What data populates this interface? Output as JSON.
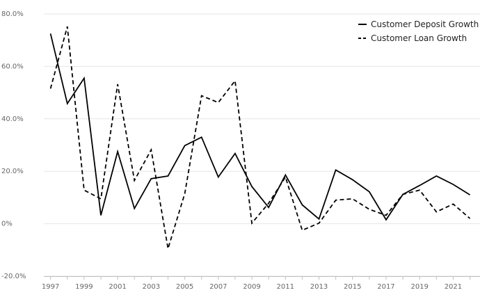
{
  "chart_data": {
    "type": "line",
    "title": "",
    "xlabel": "",
    "ylabel": "",
    "x": [
      1997,
      1998,
      1999,
      2000,
      2001,
      2002,
      2003,
      2004,
      2005,
      2006,
      2007,
      2008,
      2009,
      2010,
      2011,
      2012,
      2013,
      2014,
      2015,
      2016,
      2017,
      2018,
      2019,
      2020,
      2021,
      2022
    ],
    "xlim": [
      1996.6,
      2022.6
    ],
    "ylim": [
      -20,
      80
    ],
    "y_ticks": [
      -20,
      0,
      20,
      40,
      60,
      80
    ],
    "y_tick_labels": [
      "-20.0%",
      "0%",
      "20.0%",
      "40.0%",
      "60.0%",
      "80.0%"
    ],
    "x_ticks": [
      1997,
      1999,
      2001,
      2003,
      2005,
      2007,
      2009,
      2011,
      2013,
      2015,
      2017,
      2019,
      2021
    ],
    "x_tick_labels": [
      "1997",
      "1999",
      "2001",
      "2003",
      "2005",
      "2007",
      "2009",
      "2011",
      "2013",
      "2015",
      "2017",
      "2019",
      "2021"
    ],
    "grid": "horizontal",
    "legend_position": "top-right",
    "series": [
      {
        "name": "Customer Deposit Growth",
        "style": "solid",
        "color": "#000000",
        "values": [
          72.5,
          45.8,
          55.5,
          3.2,
          27.5,
          5.8,
          17.2,
          18.2,
          29.8,
          33.0,
          17.8,
          26.8,
          14.2,
          6.2,
          18.6,
          7.2,
          1.8,
          20.5,
          16.8,
          12.2,
          1.5,
          11.2,
          14.6,
          18.2,
          15.0,
          11.0
        ]
      },
      {
        "name": "Customer Loan Growth",
        "style": "dashed",
        "color": "#000000",
        "values": [
          51.5,
          75.2,
          12.8,
          9.5,
          53.2,
          16.5,
          28.2,
          -9.5,
          11.5,
          48.8,
          46.2,
          54.5,
          0.2,
          7.8,
          17.8,
          -2.5,
          0.2,
          9.0,
          9.5,
          5.5,
          3.2,
          11.2,
          12.8,
          4.5,
          7.5,
          2.0
        ]
      }
    ]
  }
}
